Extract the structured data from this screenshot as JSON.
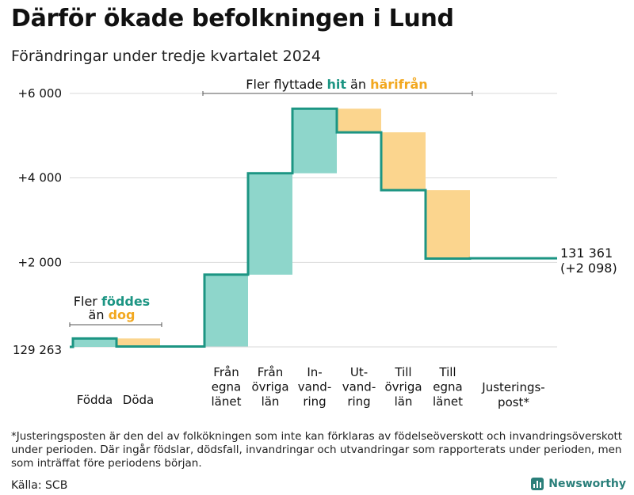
{
  "title": "Därför ökade befolkningen i Lund",
  "subtitle": "Förändringar under tredje kvartalet 2024",
  "footnote": "*Justeringsposten är den del av folkökningen som inte kan förklaras av födelseöverskott och invandringsöverskott under perioden. Där ingår födslar, dödsfall, invandringar och utvandringar som rapporterats under perioden, men som inträffat före periodens början.",
  "source": "Källa: SCB",
  "logo_text": "Newsworthy",
  "colors": {
    "positive": "#8ed6cb",
    "negative": "#fbd58e",
    "line": "#1c9583",
    "accent_teal": "#1c9583",
    "accent_orange": "#f2a81f",
    "grid": "#d9d9d9"
  },
  "chart_data": {
    "type": "waterfall",
    "title": "Därför ökade befolkningen i Lund",
    "base": 129263,
    "baseline_label": "129 263",
    "y_ticks": [
      {
        "value": 2000,
        "label": "+2 000"
      },
      {
        "value": 4000,
        "label": "+4 000"
      },
      {
        "value": 6000,
        "label": "+6 000"
      }
    ],
    "ylim": [
      0,
      6000
    ],
    "steps": [
      {
        "label": [
          "Födda"
        ],
        "change": 200
      },
      {
        "label": [
          "Döda"
        ],
        "change": -190
      },
      {
        "label": [
          "Från",
          "egna",
          "länet"
        ],
        "change": 1700
      },
      {
        "label": [
          "Från",
          "övriga",
          "län"
        ],
        "change": 2400
      },
      {
        "label": [
          "In-",
          "vand-",
          "ring"
        ],
        "change": 1530
      },
      {
        "label": [
          "Ut-",
          "vand-",
          "ring"
        ],
        "change": -560
      },
      {
        "label": [
          "Till",
          "övriga",
          "län"
        ],
        "change": -1370
      },
      {
        "label": [
          "Till",
          "egna",
          "länet"
        ],
        "change": -1620
      },
      {
        "label": [
          "Justerings-",
          "post*"
        ],
        "change": 8
      }
    ],
    "end_labels": [
      "131 361",
      "(+2 098)"
    ],
    "annotations": {
      "births_prefix": "Fler ",
      "births_highlight": "föddes",
      "births_mid": "än ",
      "births_low": "dog",
      "migration_prefix": "Fler flyttade ",
      "migration_highlight": "hit",
      "migration_mid": " än ",
      "migration_low": "härifrån"
    }
  }
}
